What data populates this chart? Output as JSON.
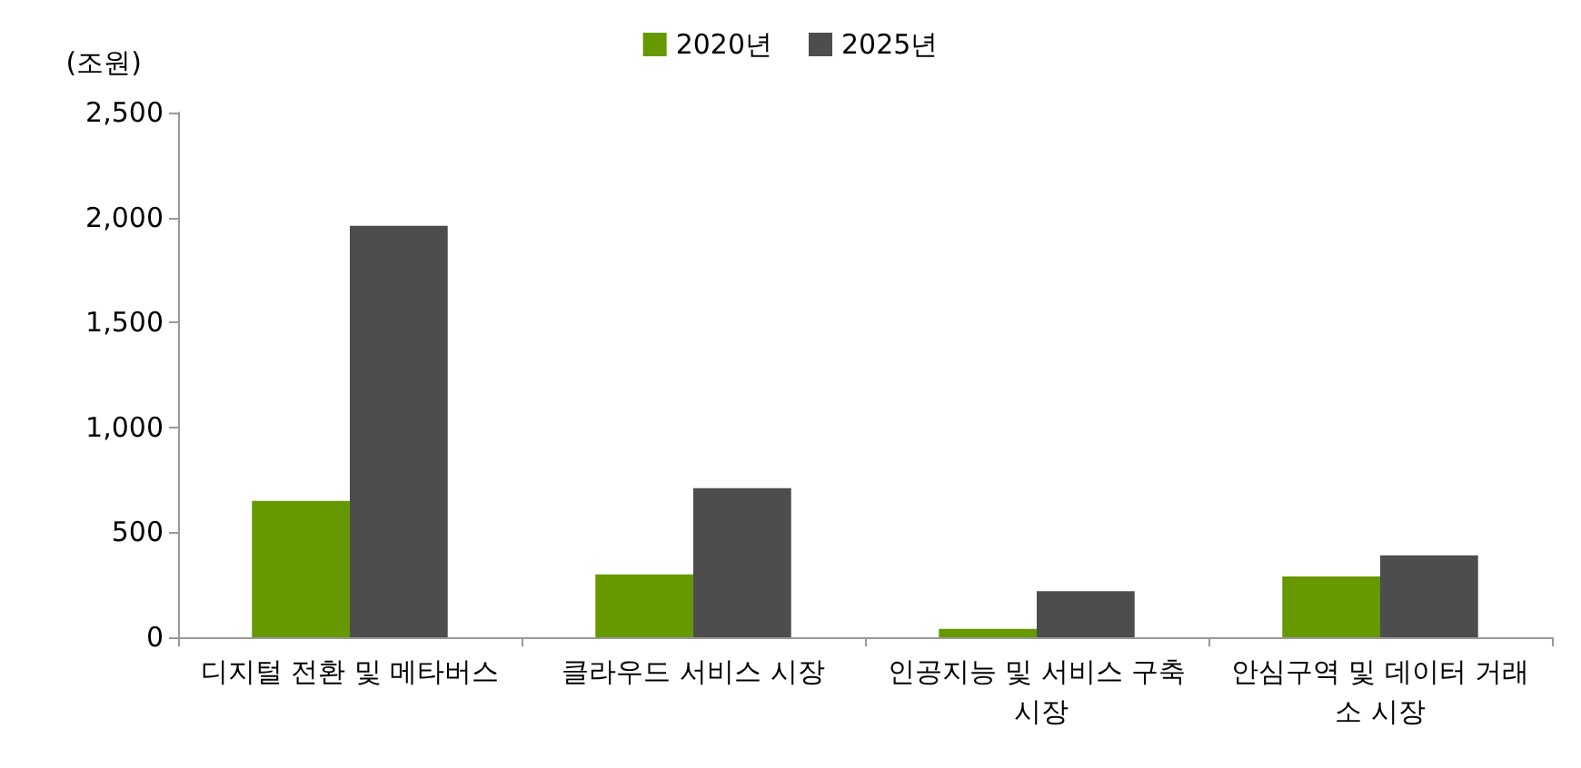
{
  "chart_data": {
    "type": "bar",
    "ylabel": "(조원)",
    "categories": [
      "디지털 전환 및 메타버스",
      "클라우드 서비스 시장",
      "인공지능 및 서비스 구축 시장",
      "안심구역 및 데이터 거래소 시장"
    ],
    "series": [
      {
        "name": "2020년",
        "color": "#669900",
        "values": [
          650,
          300,
          40,
          290
        ]
      },
      {
        "name": "2025년",
        "color": "#4d4d4d",
        "values": [
          1960,
          710,
          220,
          390
        ]
      }
    ],
    "ylim": [
      0,
      2500
    ],
    "yticks": [
      0,
      500,
      {
        "value": 1000,
        "label": "1,000"
      },
      {
        "value": 1500,
        "label": "1,500"
      },
      {
        "value": 2000,
        "label": "2,000"
      },
      {
        "value": 2500,
        "label": "2,500"
      }
    ],
    "grid": false,
    "legend": "top"
  }
}
